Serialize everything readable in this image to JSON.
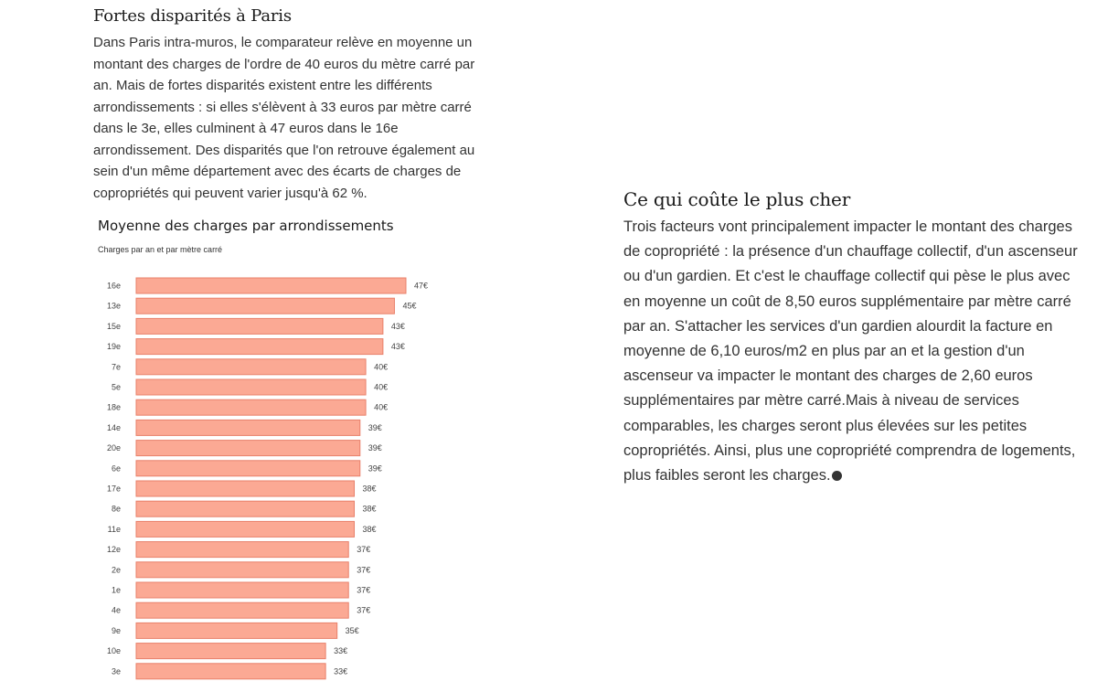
{
  "left_section": {
    "title": "Fortes disparités à Paris",
    "body": "Dans Paris intra-muros, le comparateur relève en moyenne un montant des charges de l'ordre de 40 euros du mètre carré par an. Mais de fortes disparités existent entre les différents arrondissements : si elles s'élèvent à 33 euros par mètre carré dans le 3e, elles culminent à 47 euros dans le 16e arrondissement. Des disparités que l'on retrouve également au sein d'un même département avec des écarts de charges de copropriétés qui peuvent varier jusqu'à 62 %."
  },
  "right_section": {
    "title": "Ce qui coûte le plus cher",
    "body": "Trois facteurs vont principalement impacter le montant des charges de copropriété : la présence d'un chauffage collectif, d'un ascenseur ou d'un gardien. Et c'est le chauffage collectif qui pèse le plus avec en moyenne un coût de 8,50 euros supplémentaire par mètre carré par an. S'attacher les services d'un gardien alourdit la facture en moyenne de 6,10 euros/m2 en plus par an et la gestion d'un ascenseur va impacter le montant des charges de 2,60 euros supplémentaires par mètre carré.Mais à niveau de services comparables, les charges seront plus élevées sur les petites copropriétés. Ainsi, plus une copropriété comprendra de logements, plus faibles seront les charges."
  },
  "chart_data": {
    "type": "bar",
    "orientation": "horizontal",
    "title": "Moyenne des charges par arrondissements",
    "subtitle": "Charges par an et par mètre carré",
    "categories": [
      "16e",
      "13e",
      "15e",
      "19e",
      "7e",
      "5e",
      "18e",
      "14e",
      "20e",
      "6e",
      "17e",
      "8e",
      "11e",
      "12e",
      "2e",
      "1e",
      "4e",
      "9e",
      "10e",
      "3e"
    ],
    "values": [
      47,
      45,
      43,
      43,
      40,
      40,
      40,
      39,
      39,
      39,
      38,
      38,
      38,
      37,
      37,
      37,
      37,
      35,
      33,
      33
    ],
    "value_labels": [
      "47€",
      "45€",
      "43€",
      "43€",
      "40€",
      "40€",
      "40€",
      "39€",
      "39€",
      "39€",
      "38€",
      "38€",
      "38€",
      "37€",
      "37€",
      "37€",
      "37€",
      "35€",
      "33€",
      "33€"
    ],
    "xlim": [
      0,
      47
    ],
    "grid": false,
    "bar_color": "#fba994",
    "bar_border_color": "#e8806a"
  }
}
